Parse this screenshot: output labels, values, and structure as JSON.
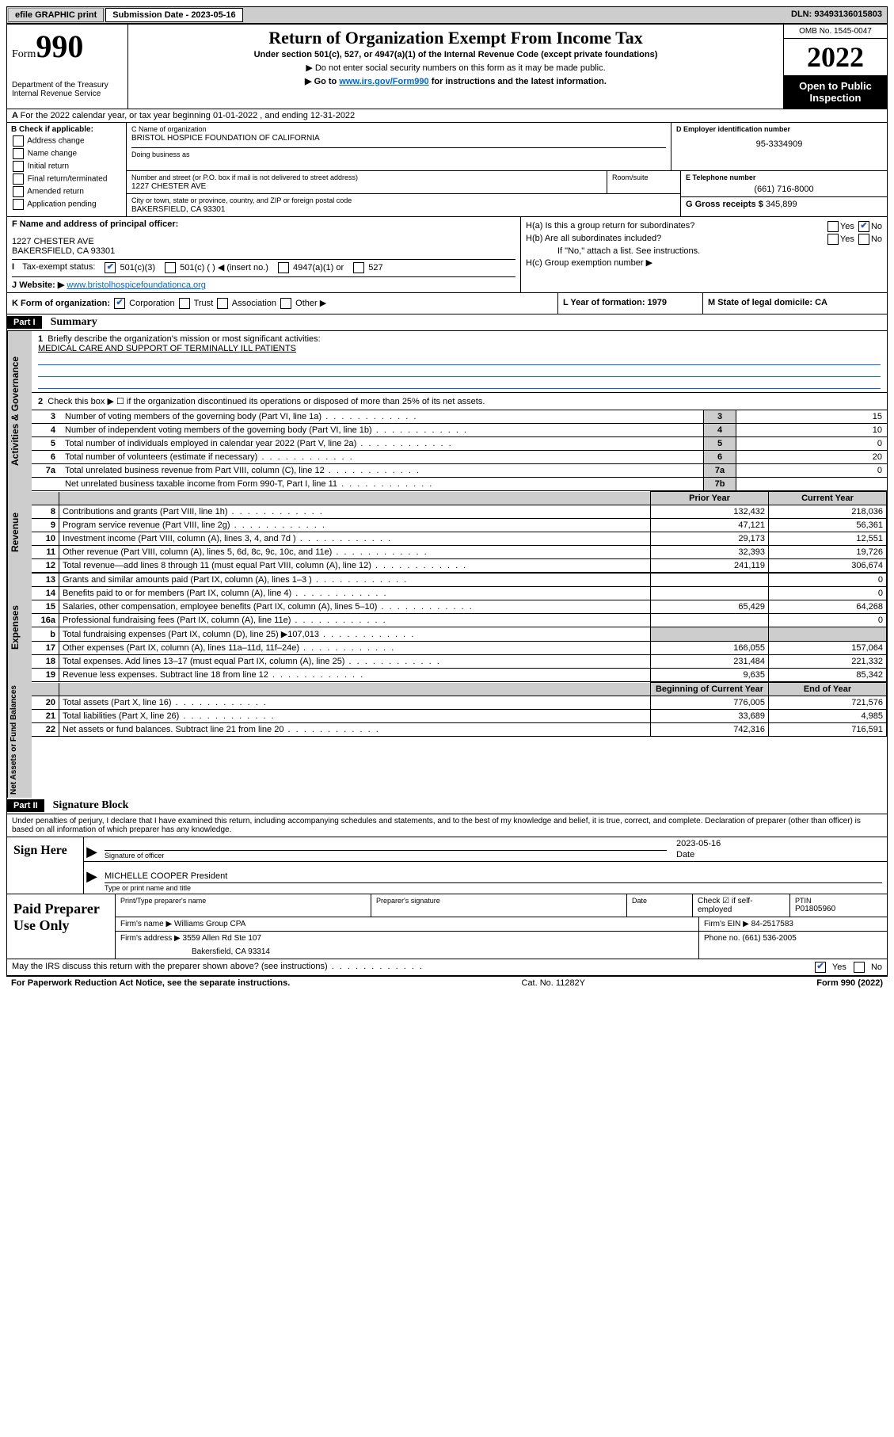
{
  "topbar": {
    "efile": "efile GRAPHIC print",
    "sub_label": "Submission Date - 2023-05-16",
    "dln": "DLN: 93493136015803"
  },
  "header": {
    "form_word": "Form",
    "form_num": "990",
    "dept": "Department of the Treasury Internal Revenue Service",
    "title": "Return of Organization Exempt From Income Tax",
    "sub": "Under section 501(c), 527, or 4947(a)(1) of the Internal Revenue Code (except private foundations)",
    "note1": "▶ Do not enter social security numbers on this form as it may be made public.",
    "note2_pre": "▶ Go to ",
    "note2_link": "www.irs.gov/Form990",
    "note2_post": " for instructions and the latest information.",
    "omb": "OMB No. 1545-0047",
    "year": "2022",
    "inspect1": "Open to Public",
    "inspect2": "Inspection"
  },
  "rowA": "For the 2022 calendar year, or tax year beginning 01-01-2022    , and ending 12-31-2022",
  "boxB": {
    "title": "B Check if applicable:",
    "opts": [
      "Address change",
      "Name change",
      "Initial return",
      "Final return/terminated",
      "Amended return",
      "Application pending"
    ]
  },
  "boxC": {
    "name_lbl": "C Name of organization",
    "name": "BRISTOL HOSPICE FOUNDATION OF CALIFORNIA",
    "dba_lbl": "Doing business as",
    "street_lbl": "Number and street (or P.O. box if mail is not delivered to street address)",
    "suite_lbl": "Room/suite",
    "street": "1227 CHESTER AVE",
    "city_lbl": "City or town, state or province, country, and ZIP or foreign postal code",
    "city": "BAKERSFIELD, CA  93301"
  },
  "boxD": {
    "lbl": "D Employer identification number",
    "val": "95-3334909"
  },
  "boxE": {
    "lbl": "E Telephone number",
    "val": "(661) 716-8000"
  },
  "boxG": {
    "lbl": "G Gross receipts $",
    "val": "345,899"
  },
  "boxF": {
    "lbl": "F Name and address of principal officer:",
    "line1": "1227 CHESTER AVE",
    "line2": "BAKERSFIELD, CA  93301"
  },
  "boxH": {
    "a": "H(a)  Is this a group return for subordinates?",
    "b": "H(b)  Are all subordinates included?",
    "b_note": "If \"No,\" attach a list. See instructions.",
    "c": "H(c)  Group exemption number ▶"
  },
  "rowI": {
    "lbl": "Tax-exempt status:",
    "o1": "501(c)(3)",
    "o2": "501(c) (  ) ◀ (insert no.)",
    "o3": "4947(a)(1) or",
    "o4": "527"
  },
  "rowJ": {
    "lbl": "Website: ▶",
    "val": "www.bristolhospicefoundationca.org"
  },
  "rowK": {
    "l": "K Form of organization:",
    "o1": "Corporation",
    "o2": "Trust",
    "o3": "Association",
    "o4": "Other ▶",
    "m": "L Year of formation: 1979",
    "r": "M State of legal domicile: CA"
  },
  "tabs": {
    "gov": "Activities & Governance",
    "rev": "Revenue",
    "exp": "Expenses",
    "net": "Net Assets or Fund Balances"
  },
  "part1": {
    "hdr": "Part I",
    "title": "Summary",
    "l1": "Briefly describe the organization's mission or most significant activities:",
    "l1v": "MEDICAL CARE AND SUPPORT OF TERMINALLY ILL PATIENTS",
    "l2": "Check this box ▶ ☐  if the organization discontinued its operations or disposed of more than 25% of its net assets.",
    "rows_gov": [
      {
        "n": "3",
        "d": "Number of voting members of the governing body (Part VI, line 1a)",
        "b": "3",
        "v": "15"
      },
      {
        "n": "4",
        "d": "Number of independent voting members of the governing body (Part VI, line 1b)",
        "b": "4",
        "v": "10"
      },
      {
        "n": "5",
        "d": "Total number of individuals employed in calendar year 2022 (Part V, line 2a)",
        "b": "5",
        "v": "0"
      },
      {
        "n": "6",
        "d": "Total number of volunteers (estimate if necessary)",
        "b": "6",
        "v": "20"
      },
      {
        "n": "7a",
        "d": "Total unrelated business revenue from Part VIII, column (C), line 12",
        "b": "7a",
        "v": "0"
      },
      {
        "n": "",
        "d": "Net unrelated business taxable income from Form 990-T, Part I, line 11",
        "b": "7b",
        "v": ""
      }
    ],
    "py_hdr": "Prior Year",
    "cy_hdr": "Current Year",
    "rows_rev": [
      {
        "n": "8",
        "d": "Contributions and grants (Part VIII, line 1h)",
        "py": "132,432",
        "cy": "218,036"
      },
      {
        "n": "9",
        "d": "Program service revenue (Part VIII, line 2g)",
        "py": "47,121",
        "cy": "56,361"
      },
      {
        "n": "10",
        "d": "Investment income (Part VIII, column (A), lines 3, 4, and 7d )",
        "py": "29,173",
        "cy": "12,551"
      },
      {
        "n": "11",
        "d": "Other revenue (Part VIII, column (A), lines 5, 6d, 8c, 9c, 10c, and 11e)",
        "py": "32,393",
        "cy": "19,726"
      },
      {
        "n": "12",
        "d": "Total revenue—add lines 8 through 11 (must equal Part VIII, column (A), line 12)",
        "py": "241,119",
        "cy": "306,674"
      }
    ],
    "rows_exp": [
      {
        "n": "13",
        "d": "Grants and similar amounts paid (Part IX, column (A), lines 1–3 )",
        "py": "",
        "cy": "0"
      },
      {
        "n": "14",
        "d": "Benefits paid to or for members (Part IX, column (A), line 4)",
        "py": "",
        "cy": "0"
      },
      {
        "n": "15",
        "d": "Salaries, other compensation, employee benefits (Part IX, column (A), lines 5–10)",
        "py": "65,429",
        "cy": "64,268"
      },
      {
        "n": "16a",
        "d": "Professional fundraising fees (Part IX, column (A), line 11e)",
        "py": "",
        "cy": "0"
      },
      {
        "n": "b",
        "d": "Total fundraising expenses (Part IX, column (D), line 25) ▶107,013",
        "py": "shade",
        "cy": "shade"
      },
      {
        "n": "17",
        "d": "Other expenses (Part IX, column (A), lines 11a–11d, 11f–24e)",
        "py": "166,055",
        "cy": "157,064"
      },
      {
        "n": "18",
        "d": "Total expenses. Add lines 13–17 (must equal Part IX, column (A), line 25)",
        "py": "231,484",
        "cy": "221,332"
      },
      {
        "n": "19",
        "d": "Revenue less expenses. Subtract line 18 from line 12",
        "py": "9,635",
        "cy": "85,342"
      }
    ],
    "boy_hdr": "Beginning of Current Year",
    "eoy_hdr": "End of Year",
    "rows_net": [
      {
        "n": "20",
        "d": "Total assets (Part X, line 16)",
        "py": "776,005",
        "cy": "721,576"
      },
      {
        "n": "21",
        "d": "Total liabilities (Part X, line 26)",
        "py": "33,689",
        "cy": "4,985"
      },
      {
        "n": "22",
        "d": "Net assets or fund balances. Subtract line 21 from line 20",
        "py": "742,316",
        "cy": "716,591"
      }
    ]
  },
  "part2": {
    "hdr": "Part II",
    "title": "Signature Block",
    "decl": "Under penalties of perjury, I declare that I have examined this return, including accompanying schedules and statements, and to the best of my knowledge and belief, it is true, correct, and complete. Declaration of preparer (other than officer) is based on all information of which preparer has any knowledge.",
    "sign_here": "Sign Here",
    "sig_lbl": "Signature of officer",
    "date_lbl": "Date",
    "date_val": "2023-05-16",
    "name_val": "MICHELLE COOPER President",
    "name_lbl": "Type or print name and title",
    "paid": "Paid Preparer Use Only",
    "p_name_lbl": "Print/Type preparer's name",
    "p_sig_lbl": "Preparer's signature",
    "p_date_lbl": "Date",
    "p_chk": "Check ☑ if self-employed",
    "p_ptin_lbl": "PTIN",
    "p_ptin": "P01805960",
    "firm_name_lbl": "Firm's name    ▶",
    "firm_name": "Williams Group CPA",
    "firm_ein_lbl": "Firm's EIN ▶",
    "firm_ein": "84-2517583",
    "firm_addr_lbl": "Firm's address ▶",
    "firm_addr1": "3559 Allen Rd Ste 107",
    "firm_addr2": "Bakersfield, CA  93314",
    "phone_lbl": "Phone no.",
    "phone": "(661) 536-2005"
  },
  "footer": {
    "q": "May the IRS discuss this return with the preparer shown above? (see instructions)",
    "yes": "Yes",
    "no": "No",
    "pra": "For Paperwork Reduction Act Notice, see the separate instructions.",
    "cat": "Cat. No. 11282Y",
    "form": "Form 990 (2022)"
  }
}
